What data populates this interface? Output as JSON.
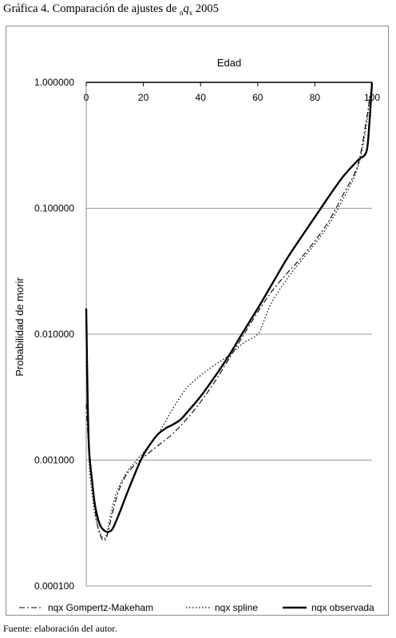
{
  "figure": {
    "title_prefix": "Gráfica 4. Comparación de ajustes de ",
    "title_sub": "n",
    "title_q": "q",
    "title_x": "x",
    "title_suffix": " 2005",
    "footnote": "Fuente: elaboración del autor."
  },
  "chart_data": {
    "type": "line",
    "xlabel": "Edad",
    "ylabel": "Probabilidad de morir",
    "xlim": [
      0,
      100
    ],
    "ylim": [
      0.0001,
      1.0
    ],
    "y_scale": "log",
    "x_ticks": [
      "0",
      "20",
      "40",
      "60",
      "80",
      "100"
    ],
    "y_ticks": [
      "1.000000",
      "0.100000",
      "0.010000",
      "0.001000",
      "0.000100"
    ],
    "grid": "horizontal",
    "x_axis_position": "top",
    "legend_position": "bottom",
    "series": [
      {
        "name": "nqx Gompertz-Makeham",
        "style": "dash-dot",
        "color": "#000000",
        "x": [
          0,
          1,
          2,
          3,
          4,
          5,
          6,
          7,
          8,
          10,
          12,
          15,
          20,
          25,
          30,
          35,
          40,
          45,
          50,
          55,
          60,
          65,
          70,
          75,
          80,
          85,
          90,
          95,
          98,
          99,
          100
        ],
        "y": [
          0.0028,
          0.0011,
          0.00066,
          0.00042,
          0.0003,
          0.00025,
          0.00023,
          0.00024,
          0.00029,
          0.00045,
          0.00062,
          0.00082,
          0.00105,
          0.0013,
          0.0016,
          0.0021,
          0.0029,
          0.0042,
          0.0064,
          0.0098,
          0.015,
          0.022,
          0.03,
          0.04,
          0.055,
          0.08,
          0.13,
          0.22,
          0.5,
          0.7,
          0.95
        ]
      },
      {
        "name": "nqx spline",
        "style": "dotted",
        "color": "#000000",
        "x": [
          0,
          1,
          2,
          3,
          4,
          5,
          6,
          7,
          8,
          10,
          12,
          15,
          20,
          25,
          30,
          35,
          40,
          45,
          50,
          55,
          60,
          62,
          65,
          70,
          75,
          80,
          85,
          90,
          95,
          98,
          99,
          100
        ],
        "y": [
          0.006,
          0.001,
          0.00055,
          0.00038,
          0.0003,
          0.00026,
          0.00024,
          0.00025,
          0.00032,
          0.0005,
          0.00065,
          0.00085,
          0.00115,
          0.0016,
          0.0025,
          0.0037,
          0.0047,
          0.0057,
          0.0068,
          0.0085,
          0.01,
          0.0125,
          0.018,
          0.027,
          0.038,
          0.052,
          0.075,
          0.12,
          0.21,
          0.45,
          0.7,
          0.95
        ]
      },
      {
        "name": "nqx observada",
        "style": "solid",
        "color": "#000000",
        "x": [
          0,
          0.5,
          1,
          2,
          3,
          4,
          5,
          6,
          7,
          8,
          9,
          10,
          12,
          15,
          18,
          20,
          22,
          25,
          28,
          30,
          33,
          36,
          40,
          45,
          50,
          55,
          60,
          65,
          70,
          75,
          80,
          85,
          90,
          95,
          98,
          99,
          100
        ],
        "y": [
          0.016,
          0.003,
          0.0012,
          0.0007,
          0.00045,
          0.00035,
          0.0003,
          0.00028,
          0.00027,
          0.00027,
          0.00028,
          0.00031,
          0.0004,
          0.0006,
          0.00088,
          0.0011,
          0.0013,
          0.0016,
          0.0018,
          0.0019,
          0.0021,
          0.0025,
          0.0032,
          0.0046,
          0.0068,
          0.0105,
          0.016,
          0.025,
          0.039,
          0.058,
          0.085,
          0.125,
          0.18,
          0.24,
          0.28,
          0.45,
          1.0
        ]
      }
    ]
  }
}
